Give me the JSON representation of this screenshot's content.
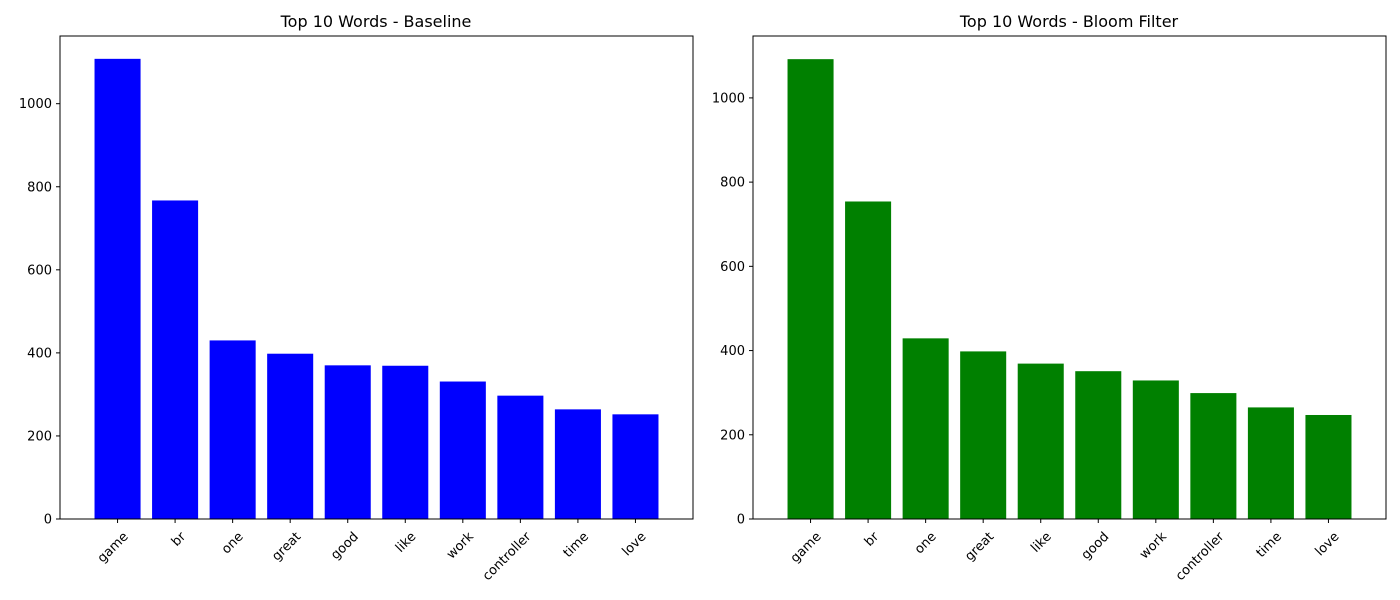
{
  "chart_data": [
    {
      "type": "bar",
      "title": "Top 10 Words - Baseline",
      "categories": [
        "game",
        "br",
        "one",
        "great",
        "good",
        "like",
        "work",
        "controller",
        "time",
        "love"
      ],
      "values": [
        1108,
        767,
        430,
        398,
        370,
        369,
        331,
        297,
        264,
        252
      ],
      "color": "#0000ff",
      "xlabel": "",
      "ylabel": "",
      "ylim": [
        0,
        1163
      ],
      "yticks": [
        0,
        200,
        400,
        600,
        800,
        1000
      ],
      "grid": false
    },
    {
      "type": "bar",
      "title": "Top 10 Words - Bloom Filter",
      "categories": [
        "game",
        "br",
        "one",
        "great",
        "like",
        "good",
        "work",
        "controller",
        "time",
        "love"
      ],
      "values": [
        1092,
        754,
        429,
        398,
        369,
        351,
        329,
        299,
        265,
        247
      ],
      "color": "#008000",
      "xlabel": "",
      "ylabel": "",
      "ylim": [
        0,
        1147
      ],
      "yticks": [
        0,
        200,
        400,
        600,
        800,
        1000
      ],
      "grid": false
    }
  ]
}
